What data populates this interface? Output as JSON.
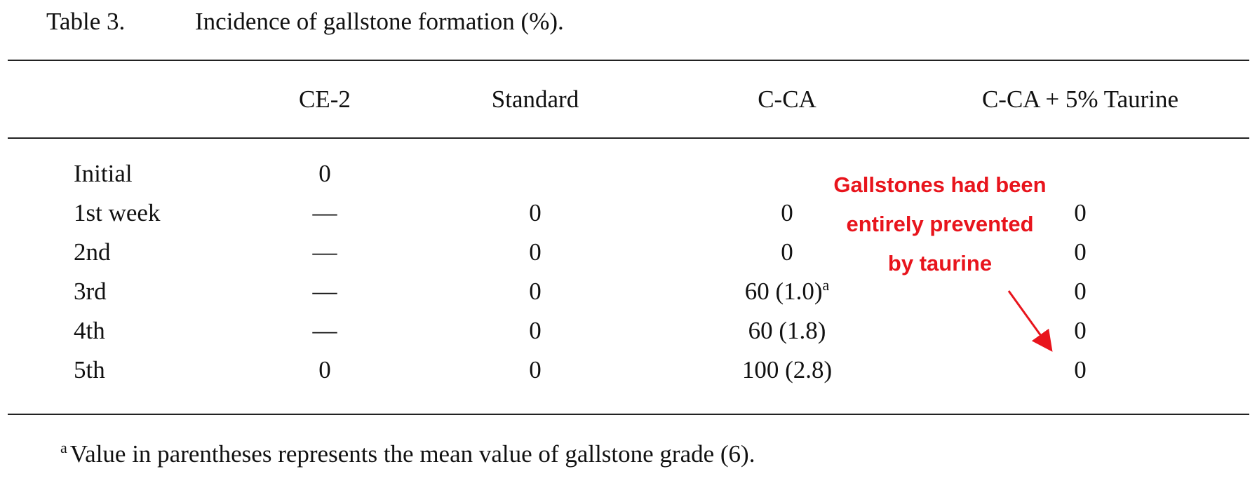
{
  "caption": {
    "label": "Table 3.",
    "title": "Incidence of gallstone formation (%)."
  },
  "table": {
    "columns": [
      "CE-2",
      "Standard",
      "C-CA",
      "C-CA + 5% Taurine"
    ],
    "rows": [
      {
        "label": "Initial",
        "cells": [
          "0",
          null,
          null,
          null
        ]
      },
      {
        "label": "1st week",
        "cells": [
          "—",
          "0",
          "0",
          "0"
        ]
      },
      {
        "label": "2nd",
        "cells": [
          "—",
          "0",
          "0",
          "0"
        ]
      },
      {
        "label": "3rd",
        "cells": [
          "—",
          "0",
          {
            "text": "60 (1.0)",
            "note": "a"
          },
          "0"
        ]
      },
      {
        "label": "4th",
        "cells": [
          "—",
          "0",
          "60 (1.8)",
          "0"
        ]
      },
      {
        "label": "5th",
        "cells": [
          "0",
          "0",
          "100 (2.8)",
          "0"
        ]
      }
    ]
  },
  "footnote": {
    "mark": "a",
    "text": "Value in parentheses represents the mean value of gallstone grade (6)."
  },
  "annotation": {
    "lines": [
      "Gallstones had been",
      "entirely prevented",
      "by taurine"
    ],
    "color": "#e8141c"
  }
}
